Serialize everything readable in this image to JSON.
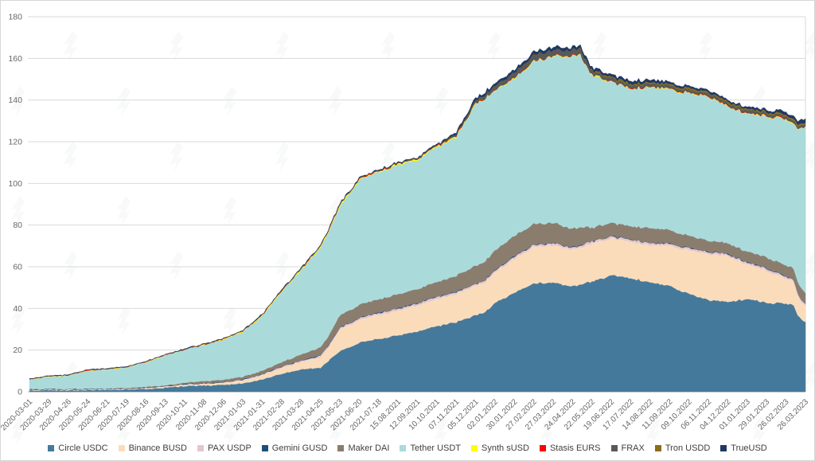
{
  "chart_data": {
    "type": "area",
    "variant": "stacked-area",
    "title": "",
    "ylabel": "",
    "xlabel": "",
    "ylim": [
      0,
      180
    ],
    "y_ticks": [
      0,
      20,
      40,
      60,
      80,
      100,
      120,
      140,
      160,
      180
    ],
    "grid": "horizontal",
    "legend_position": "bottom",
    "axis_text_color": "#666666",
    "grid_color": "#d9d9d9",
    "axis_line_color": "#bfbfbf",
    "watermark": {
      "name": "forklog-watermark",
      "color": "#7a8a8a",
      "opacity": 0.055
    },
    "x_tick_labels": [
      "2020-03-01",
      "2020-03-29",
      "2020-04-26",
      "2020-05-24",
      "2020-06-21",
      "2020-07-19",
      "2020-08-16",
      "2020-09-13",
      "2020-10-11",
      "2020-11-08",
      "2020-12-06",
      "2021-01-03",
      "2021-01-31",
      "2021-02-28",
      "2021-03-28",
      "2021-04-25",
      "2021-05-23",
      "2021-06-20",
      "2021-07-18",
      "15.08.2021",
      "12.09.2021",
      "10.10.2021",
      "07.11.2021",
      "05.12.2021",
      "02.01.2022",
      "30.01.2022",
      "27.02.2022",
      "27.03.2022",
      "24.04.2022",
      "22.05.2022",
      "19.06.2022",
      "17.07.2022",
      "14.08.2022",
      "11.09.2022",
      "09.10.2022",
      "06.11.2022",
      "04.12.2022",
      "01.01.2023",
      "29.01.2023",
      "26.02.2023",
      "26.03.2023"
    ],
    "x_units": "tick-index (0 = 2020-03-01, 40 = 26.03.2023), values in $B",
    "x": [
      0,
      1,
      2,
      3,
      4,
      5,
      6,
      7,
      8,
      9,
      10,
      11,
      12,
      13,
      14,
      15,
      15.5,
      16,
      17,
      18,
      19,
      20,
      21,
      22,
      23,
      23.5,
      24,
      25,
      26,
      27,
      28,
      28.4,
      28.75,
      29,
      30,
      31,
      32,
      33,
      34,
      35,
      36,
      37,
      38,
      39,
      39.35,
      39.55,
      39.75,
      40
    ],
    "series": [
      {
        "name": "Circle USDC",
        "slug": "circle-usdc",
        "color": "#45799B",
        "values": [
          0.7,
          0.7,
          0.75,
          0.75,
          0.95,
          1.1,
          1.4,
          1.9,
          2.8,
          3.0,
          3.3,
          4.1,
          5.8,
          8.7,
          10.7,
          11.5,
          15.5,
          19.5,
          23.5,
          25.5,
          27.0,
          29.0,
          31.5,
          33.5,
          36.5,
          38.5,
          42.5,
          47.5,
          52.0,
          52.5,
          50.5,
          51.5,
          52.5,
          52.8,
          55.8,
          54.8,
          52.5,
          50.8,
          46.9,
          44.0,
          43.2,
          44.6,
          42.8,
          42.3,
          42.2,
          38.0,
          34.8,
          33.5
        ]
      },
      {
        "name": "Binance BUSD",
        "slug": "binance-busd",
        "color": "#FADCBB",
        "values": [
          0.2,
          0.2,
          0.2,
          0.2,
          0.2,
          0.2,
          0.3,
          0.4,
          0.6,
          0.7,
          1.0,
          1.4,
          2.1,
          2.8,
          3.5,
          5.2,
          7.0,
          10.5,
          11.0,
          11.5,
          12.0,
          12.5,
          13.0,
          13.5,
          14.2,
          14.4,
          14.6,
          16.5,
          17.5,
          17.8,
          17.8,
          17.9,
          18.1,
          18.3,
          17.6,
          17.5,
          17.9,
          19.4,
          21.1,
          22.1,
          22.0,
          16.6,
          15.5,
          12.0,
          11.5,
          10.0,
          8.5,
          7.8
        ]
      },
      {
        "name": "PAX USDP",
        "slug": "pax-usdp",
        "color": "#E3C6D1",
        "values": [
          0.2,
          0.2,
          0.2,
          0.2,
          0.2,
          0.2,
          0.2,
          0.25,
          0.25,
          0.25,
          0.25,
          0.3,
          0.4,
          0.5,
          0.6,
          0.7,
          0.72,
          0.75,
          0.8,
          0.85,
          0.9,
          0.9,
          0.9,
          0.9,
          0.9,
          0.9,
          0.95,
          0.95,
          0.95,
          0.95,
          0.95,
          0.95,
          0.95,
          0.95,
          0.95,
          0.95,
          0.95,
          0.95,
          0.9,
          0.9,
          0.9,
          0.9,
          0.9,
          0.9,
          0.9,
          0.9,
          0.9,
          0.9
        ]
      },
      {
        "name": "Gemini GUSD",
        "slug": "gemini-gusd",
        "color": "#1F4E79",
        "values": [
          0.1,
          0.1,
          0.1,
          0.1,
          0.1,
          0.1,
          0.1,
          0.1,
          0.1,
          0.1,
          0.1,
          0.12,
          0.12,
          0.13,
          0.14,
          0.15,
          0.15,
          0.16,
          0.17,
          0.17,
          0.18,
          0.18,
          0.18,
          0.19,
          0.2,
          0.2,
          0.2,
          0.2,
          0.2,
          0.2,
          0.2,
          0.2,
          0.2,
          0.2,
          0.2,
          0.2,
          0.2,
          0.2,
          0.2,
          0.2,
          0.2,
          0.2,
          0.2,
          0.2,
          0.2,
          0.18,
          0.15,
          0.13
        ]
      },
      {
        "name": "Maker DAI",
        "slug": "maker-dai",
        "color": "#8B7D6E",
        "values": [
          0.1,
          0.1,
          0.1,
          0.12,
          0.13,
          0.2,
          0.35,
          0.4,
          0.6,
          1.0,
          1.1,
          1.3,
          1.6,
          2.0,
          2.9,
          3.8,
          4.6,
          5.9,
          6.2,
          6.4,
          6.6,
          6.8,
          7.0,
          7.6,
          8.6,
          8.8,
          9.4,
          9.7,
          9.8,
          9.6,
          8.8,
          8.6,
          7.5,
          6.5,
          6.3,
          6.3,
          7.0,
          6.4,
          5.7,
          5.2,
          5.1,
          5.1,
          5.2,
          5.2,
          5.2,
          5.2,
          5.3,
          5.3
        ]
      },
      {
        "name": "Tether USDT",
        "slug": "tether-usdt",
        "color": "#ABDADB",
        "values": [
          4.5,
          6.0,
          6.4,
          8.8,
          9.2,
          9.9,
          11.9,
          14.4,
          15.8,
          17.4,
          19.3,
          21.7,
          26.4,
          34.0,
          40.5,
          48.0,
          50.5,
          52.5,
          59.8,
          61.1,
          62.1,
          62.0,
          64.8,
          66.7,
          77.5,
          78.2,
          76.5,
          75.5,
          78.0,
          80.0,
          82.8,
          82.9,
          76.0,
          73.2,
          67.5,
          66.0,
          67.6,
          67.6,
          68.3,
          69.2,
          65.5,
          66.2,
          67.6,
          70.3,
          69.0,
          72.5,
          76.5,
          79.5
        ]
      },
      {
        "name": "Synth sUSD",
        "slug": "synth-susd",
        "color": "#FFFF00",
        "values": [
          0.08,
          0.08,
          0.1,
          0.1,
          0.1,
          0.12,
          0.15,
          0.15,
          0.15,
          0.15,
          0.15,
          0.2,
          0.3,
          0.3,
          0.35,
          0.5,
          0.5,
          0.5,
          0.45,
          0.4,
          0.45,
          0.45,
          0.45,
          0.5,
          0.3,
          0.3,
          0.25,
          0.25,
          0.22,
          0.2,
          0.2,
          0.2,
          0.2,
          0.2,
          0.2,
          0.2,
          0.2,
          0.2,
          0.2,
          0.2,
          0.2,
          0.2,
          0.2,
          0.2,
          0.2,
          0.2,
          0.2,
          0.2
        ]
      },
      {
        "name": "Stasis EURS",
        "slug": "stasis-eurs",
        "color": "#FF0000",
        "values": [
          0.1,
          0.1,
          0.1,
          0.1,
          0.1,
          0.1,
          0.1,
          0.1,
          0.1,
          0.1,
          0.1,
          0.1,
          0.1,
          0.1,
          0.1,
          0.1,
          0.1,
          0.1,
          0.1,
          0.1,
          0.1,
          0.1,
          0.1,
          0.1,
          0.1,
          0.1,
          0.1,
          0.1,
          0.1,
          0.1,
          0.1,
          0.1,
          0.1,
          0.1,
          0.1,
          0.1,
          0.1,
          0.1,
          0.1,
          0.1,
          0.1,
          0.1,
          0.1,
          0.1,
          0.1,
          0.1,
          0.1,
          0.1
        ]
      },
      {
        "name": "FRAX",
        "slug": "frax",
        "color": "#595959",
        "values": [
          0,
          0,
          0,
          0,
          0,
          0,
          0,
          0,
          0,
          0,
          0,
          0.05,
          0.1,
          0.15,
          0.15,
          0.15,
          0.18,
          0.2,
          0.2,
          0.2,
          0.25,
          0.3,
          0.4,
          0.6,
          1.3,
          1.5,
          1.9,
          2.5,
          2.85,
          2.7,
          2.6,
          2.6,
          1.9,
          1.5,
          1.45,
          1.45,
          1.4,
          1.4,
          1.35,
          1.3,
          1.3,
          1.25,
          1.2,
          1.15,
          1.15,
          1.1,
          1.05,
          1.05
        ]
      },
      {
        "name": "Tron USDD",
        "slug": "tron-usdd",
        "color": "#8A6D1A",
        "values": [
          0,
          0,
          0,
          0,
          0,
          0,
          0,
          0,
          0,
          0,
          0,
          0,
          0,
          0,
          0,
          0,
          0,
          0,
          0,
          0,
          0,
          0,
          0,
          0,
          0,
          0,
          0,
          0,
          0,
          0,
          0.05,
          0.3,
          0.5,
          0.6,
          0.7,
          0.72,
          0.72,
          0.72,
          0.74,
          0.73,
          0.72,
          0.7,
          0.71,
          0.72,
          0.72,
          0.72,
          0.72,
          0.72
        ]
      },
      {
        "name": "TrueUSD",
        "slug": "trueusd",
        "color": "#203864",
        "values": [
          0.14,
          0.14,
          0.14,
          0.14,
          0.14,
          0.14,
          0.15,
          0.15,
          0.2,
          0.25,
          0.27,
          0.28,
          0.3,
          0.3,
          0.33,
          0.35,
          0.38,
          0.4,
          0.4,
          0.4,
          0.4,
          0.4,
          0.5,
          1.0,
          1.2,
          1.2,
          1.3,
          1.3,
          1.4,
          1.4,
          1.3,
          1.3,
          1.25,
          1.2,
          1.2,
          1.2,
          1.2,
          1.0,
          0.9,
          0.9,
          0.85,
          0.9,
          0.96,
          1.3,
          1.4,
          1.6,
          1.9,
          2.0
        ]
      }
    ]
  },
  "legend": {
    "items": [
      "Circle USDC",
      "Binance BUSD",
      "PAX USDP",
      "Gemini GUSD",
      "Maker DAI",
      "Tether USDT",
      "Synth sUSD",
      "Stasis EURS",
      "FRAX",
      "Tron USDD",
      "TrueUSD"
    ]
  }
}
